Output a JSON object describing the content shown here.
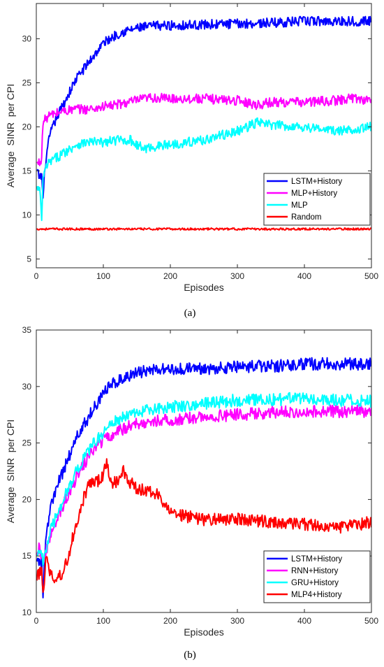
{
  "chart_data": [
    {
      "type": "line",
      "caption": "(a)",
      "xlabel": "Episodes",
      "ylabel": "Average  SINR  per CPI",
      "xlim": [
        0,
        500
      ],
      "ylim": [
        4,
        34
      ],
      "xticks": [
        0,
        100,
        200,
        300,
        400,
        500
      ],
      "yticks": [
        5,
        10,
        15,
        20,
        25,
        30
      ],
      "grid": false,
      "legend_position": "bottom-right",
      "series": [
        {
          "name": "LSTM+History",
          "color": "#0000ff",
          "x": [
            1,
            5,
            8,
            10,
            13,
            20,
            30,
            40,
            50,
            60,
            70,
            80,
            90,
            100,
            110,
            120,
            130,
            140,
            150,
            160,
            180,
            200,
            250,
            300,
            350,
            400,
            450,
            500
          ],
          "y": [
            15,
            14.2,
            14.5,
            11.8,
            15.5,
            19,
            21,
            22.5,
            24,
            25.5,
            26.5,
            27.5,
            28.5,
            29.5,
            30,
            30.5,
            30.8,
            31,
            31.2,
            31.3,
            31.5,
            31.5,
            31.6,
            31.7,
            31.8,
            32,
            32,
            32
          ]
        },
        {
          "name": "MLP+History",
          "color": "#ff00ff",
          "x": [
            1,
            5,
            8,
            10,
            15,
            20,
            40,
            60,
            80,
            100,
            120,
            150,
            170,
            200,
            250,
            300,
            330,
            350,
            400,
            450,
            470,
            500
          ],
          "y": [
            15.8,
            16,
            16.5,
            20.5,
            21,
            21.3,
            21.8,
            22,
            22,
            22.3,
            22.5,
            23,
            23.3,
            23.2,
            23.2,
            23,
            22.5,
            22.8,
            22.8,
            23,
            23.3,
            23
          ]
        },
        {
          "name": "MLP",
          "color": "#00ffff",
          "x": [
            1,
            5,
            8,
            10,
            15,
            20,
            30,
            40,
            60,
            80,
            100,
            120,
            140,
            160,
            180,
            200,
            250,
            300,
            330,
            350,
            400,
            450,
            500
          ],
          "y": [
            13,
            12.8,
            9.5,
            14,
            15.5,
            16,
            16.5,
            17,
            18,
            18.3,
            18.2,
            18.5,
            18.5,
            17.5,
            17.8,
            18,
            18.5,
            19.5,
            20.5,
            20.2,
            20,
            19.5,
            20
          ]
        },
        {
          "name": "Random",
          "color": "#ff0000",
          "x": [
            1,
            100,
            200,
            300,
            400,
            500
          ],
          "y": [
            8.4,
            8.4,
            8.4,
            8.4,
            8.4,
            8.4
          ]
        }
      ]
    },
    {
      "type": "line",
      "caption": "(b)",
      "xlabel": "Episodes",
      "ylabel": "Average  SINR  per CPI",
      "xlim": [
        0,
        500
      ],
      "ylim": [
        10,
        35
      ],
      "xticks": [
        0,
        100,
        200,
        300,
        400,
        500
      ],
      "yticks": [
        10,
        15,
        20,
        25,
        30,
        35
      ],
      "grid": false,
      "legend_position": "bottom-right",
      "series": [
        {
          "name": "LSTM+History",
          "color": "#0000ff",
          "x": [
            1,
            5,
            8,
            10,
            13,
            20,
            30,
            40,
            50,
            60,
            70,
            80,
            90,
            100,
            110,
            120,
            130,
            140,
            150,
            160,
            180,
            200,
            250,
            300,
            350,
            400,
            450,
            500
          ],
          "y": [
            15,
            14.2,
            14.5,
            11.8,
            15.5,
            19,
            21,
            22.5,
            24,
            25.5,
            26.5,
            27.5,
            28.5,
            29.5,
            30,
            30.5,
            30.8,
            31,
            31.2,
            31.3,
            31.5,
            31.5,
            31.6,
            31.7,
            31.8,
            32,
            32,
            32
          ]
        },
        {
          "name": "RNN+History",
          "color": "#ff00ff",
          "x": [
            1,
            5,
            10,
            20,
            30,
            40,
            60,
            80,
            100,
            120,
            140,
            160,
            180,
            200,
            250,
            300,
            350,
            400,
            450,
            500
          ],
          "y": [
            15.5,
            15.8,
            14.5,
            16.5,
            18,
            19.5,
            22,
            24,
            25.3,
            26,
            26.5,
            26.8,
            27,
            27,
            27.3,
            27.5,
            27.7,
            27.8,
            27.8,
            27.8
          ]
        },
        {
          "name": "GRU+History",
          "color": "#00ffff",
          "x": [
            1,
            5,
            10,
            20,
            30,
            40,
            60,
            80,
            100,
            120,
            140,
            160,
            180,
            200,
            250,
            300,
            350,
            400,
            450,
            500
          ],
          "y": [
            15.5,
            15.5,
            14.5,
            17,
            18.5,
            20,
            22.5,
            24.5,
            26,
            27,
            27.5,
            27.8,
            28,
            28.2,
            28.5,
            28.8,
            28.8,
            29,
            28.8,
            28.7
          ]
        },
        {
          "name": "MLP4+History",
          "color": "#ff0000",
          "x": [
            1,
            5,
            8,
            10,
            15,
            20,
            25,
            30,
            40,
            50,
            60,
            70,
            80,
            90,
            100,
            105,
            110,
            120,
            130,
            140,
            150,
            160,
            180,
            200,
            250,
            300,
            350,
            400,
            450,
            500
          ],
          "y": [
            13.2,
            13.5,
            14,
            11.5,
            15.2,
            13.5,
            13,
            13,
            13.5,
            15.5,
            18,
            20,
            21.5,
            21.5,
            22,
            23.5,
            21.5,
            21.5,
            22.5,
            21.5,
            21,
            20.8,
            20.5,
            18.8,
            18.2,
            18.3,
            18,
            17.8,
            17.5,
            18
          ]
        }
      ]
    }
  ]
}
